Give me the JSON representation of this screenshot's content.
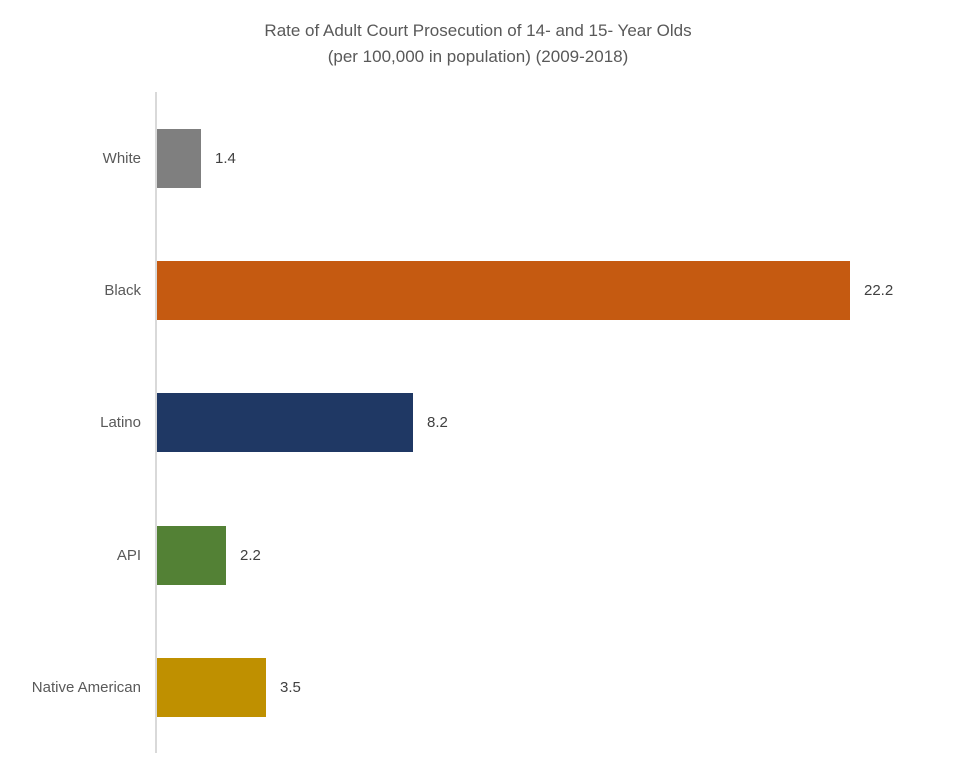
{
  "title": {
    "line1": "Rate of Adult Court Prosecution of 14- and 15- Year Olds",
    "line2": "(per 100,000 in population) (2009-2018)"
  },
  "chart_data": {
    "type": "bar",
    "orientation": "horizontal",
    "title": "Rate of Adult Court Prosecution of 14- and 15- Year Olds (per 100,000 in population) (2009-2018)",
    "categories": [
      "White",
      "Black",
      "Latino",
      "API",
      "Native American"
    ],
    "values": [
      1.4,
      22.2,
      8.2,
      2.2,
      3.5
    ],
    "value_labels": [
      "1.4",
      "22.2",
      "8.2",
      "2.2",
      "3.5"
    ],
    "bar_colors": [
      "#7F7F7F",
      "#C55A11",
      "#1F3864",
      "#538135",
      "#BF9000"
    ],
    "xlabel": "",
    "ylabel": "",
    "xlim": [
      0,
      25
    ],
    "grid": false,
    "legend": false,
    "axis_line_color": "#D9D9D9",
    "axis_label_color": "#595959",
    "data_label_color": "#404040"
  }
}
